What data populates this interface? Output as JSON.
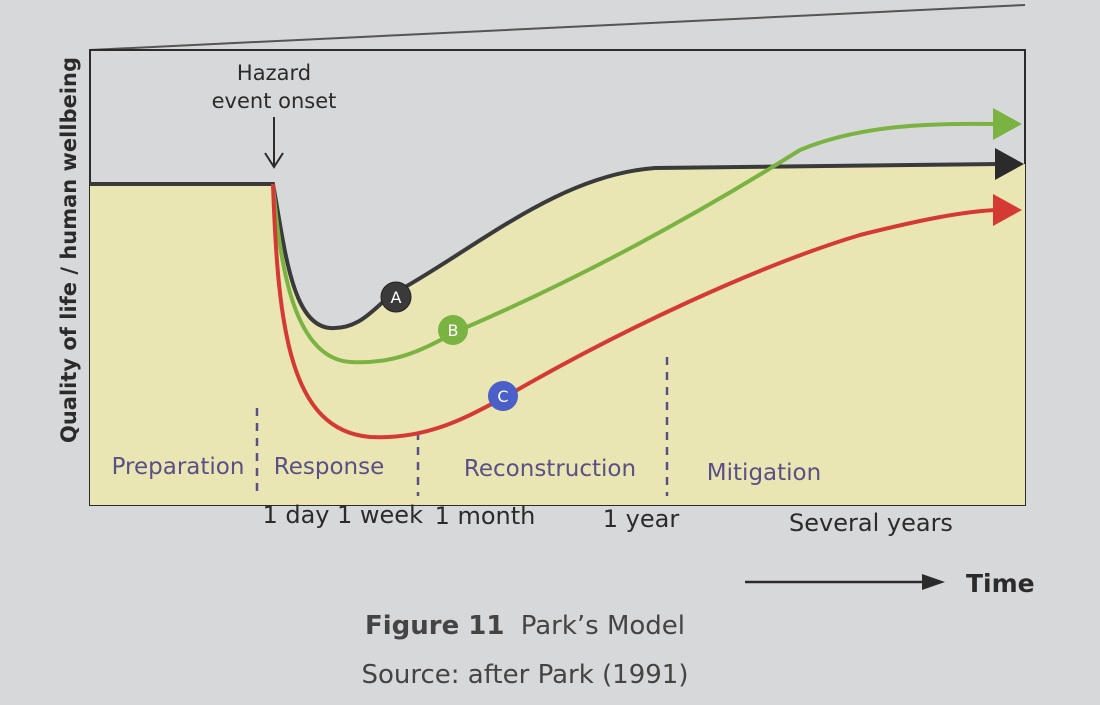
{
  "diagram": {
    "hazard_label_line1": "Hazard",
    "hazard_label_line2": "event onset",
    "y_axis_label": "Quality of life / human wellbeing",
    "time_label": "Time",
    "phases": [
      "Preparation",
      "Response",
      "Reconstruction",
      "Mitigation"
    ],
    "time_ticks": [
      "1 day",
      "1 week",
      "1 month",
      "1 year",
      "Several years"
    ],
    "curves": [
      {
        "marker": "A",
        "color": "#3a3a3a"
      },
      {
        "marker": "B",
        "color": "#7bb342"
      },
      {
        "marker": "C",
        "color": "#d43a33",
        "marker_color": "#4a5fc8"
      }
    ],
    "fill_color": "#e9e6b4"
  },
  "caption": {
    "figure_number": "Figure 11",
    "figure_title": "Park’s Model",
    "source": "Source: after Park (1991)"
  }
}
